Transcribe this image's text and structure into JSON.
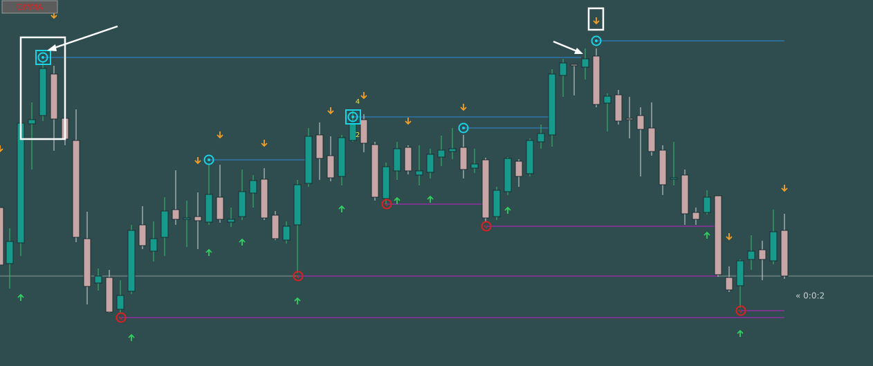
{
  "toolbar": {
    "button": "GMMA"
  },
  "chart": {
    "labels": [
      "4",
      "2"
    ],
    "countdown": "« 0:0:2"
  }
}
